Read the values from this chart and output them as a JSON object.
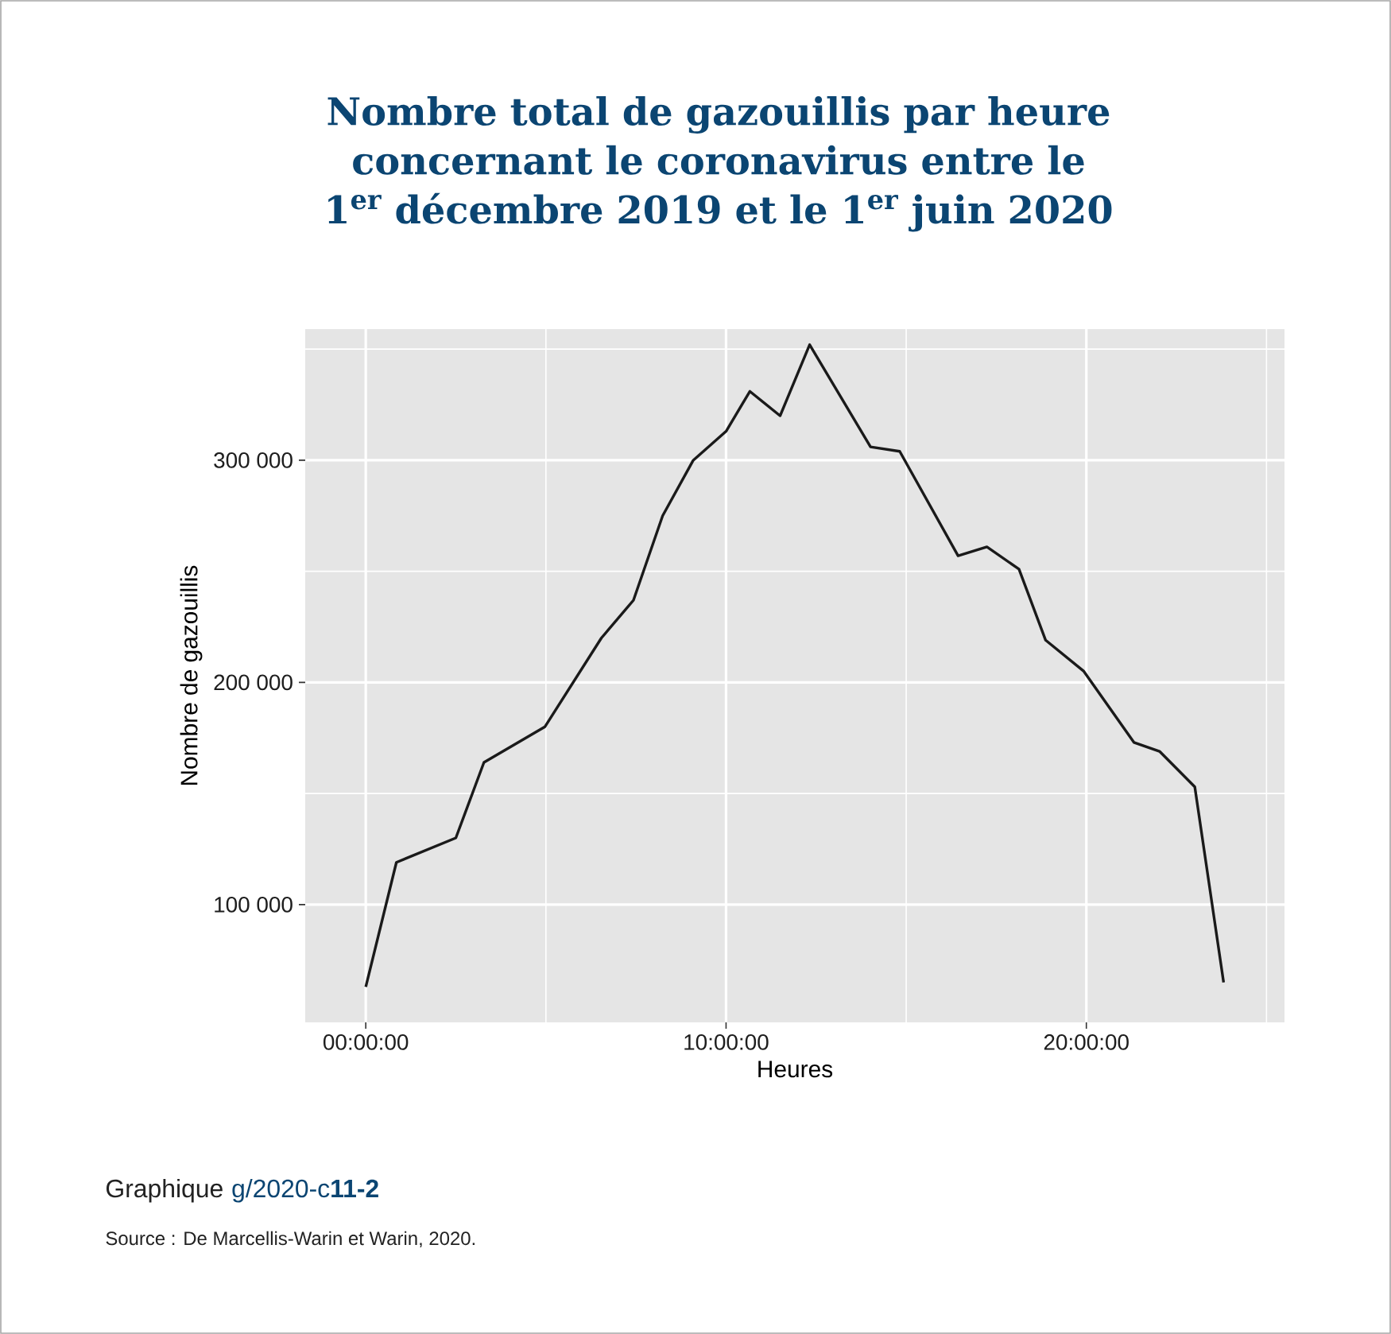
{
  "chart_data": {
    "type": "line",
    "title": "Nombre total de gazouillis par heure concernant le coronavirus entre le 1$^{er}$ décembre 2019 et le 1$^{er}$ juin 2020",
    "xlabel": "Heures",
    "ylabel": "Nombre de gazouillis",
    "annotations": [
      "Graphique",
      "g/2020-c**11-2**",
      "Source : De Marcellis-Warin et Warin, 2020."
    ],
    "x": [
      0,
      0.85,
      2.5,
      3.28,
      4.97,
      6.54,
      7.43,
      8.24,
      9.09,
      10.0,
      10.66,
      11.5,
      12.32,
      14.01,
      14.82,
      16.44,
      17.24,
      18.13,
      18.87,
      19.93,
      21.32,
      22.03,
      23.01,
      23.81
    ],
    "series": [
      {
        "color": "#1a1a1a",
        "values": [
          63000,
          119000,
          130000,
          164000,
          180000,
          220000,
          237000,
          275000,
          300000,
          313000,
          331000,
          320000,
          352000,
          306000,
          304000,
          257000,
          261000,
          251000,
          219000,
          205000,
          173000,
          169000,
          153000,
          65000
        ]
      }
    ],
    "xlim": [
      -1.68,
      25.5
    ],
    "ylim": [
      47000,
      359000
    ],
    "xticks": [
      {
        "value": 0,
        "label": "00:00:00"
      },
      {
        "value": 5,
        "label": null
      },
      {
        "value": 10,
        "label": "10:00:00"
      },
      {
        "value": 15,
        "label": null
      },
      {
        "value": 20,
        "label": "20:00:00"
      },
      {
        "value": 25,
        "label": null
      }
    ],
    "yticks": [
      {
        "value": 100000,
        "label": "100 000"
      },
      {
        "value": 150000,
        "label": null
      },
      {
        "value": 200000,
        "label": "200 000"
      },
      {
        "value": 250000,
        "label": null
      },
      {
        "value": 300000,
        "label": "300 000"
      },
      {
        "value": 350000,
        "label": null
      }
    ],
    "grid": true,
    "marker": "none",
    "line_style": "solid"
  }
}
